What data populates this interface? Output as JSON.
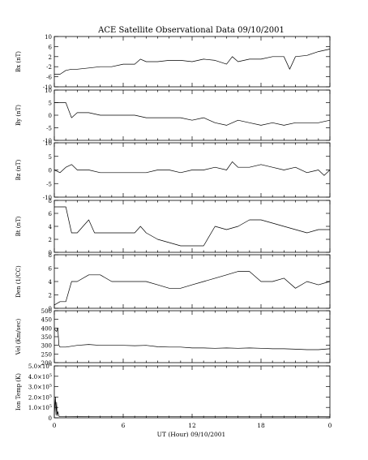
{
  "chart_data": {
    "type": "line",
    "title": "ACE Satellite Observational Data   09/10/2001",
    "xlabel": "UT (Hour)   09/10/2001",
    "x_tick_labels": [
      "0",
      "6",
      "12",
      "18",
      "0"
    ],
    "x_tick_hours": [
      0,
      6,
      12,
      18,
      24
    ],
    "xlim_hours": [
      0,
      24
    ],
    "grid": false,
    "legend": "none",
    "panels": [
      {
        "ylabel": "Bx (nT)",
        "ylim": [
          -10,
          10
        ],
        "y_ticks": [
          {
            "value": 10,
            "label": "10"
          },
          {
            "value": 6,
            "label": "6"
          },
          {
            "value": 2,
            "label": "2"
          },
          {
            "value": -2,
            "label": "-2"
          },
          {
            "value": -6,
            "label": "-6"
          },
          {
            "value": -10,
            "label": "-10"
          }
        ],
        "series": [
          {
            "x_hours": [
              0,
              0.5,
              1,
              1.5,
              2,
              3,
              4,
              5,
              6,
              7,
              7.5,
              8,
              9,
              10,
              11,
              12,
              13,
              14,
              15,
              15.5,
              16,
              17,
              18,
              19,
              20,
              20.5,
              21,
              22,
              23,
              24
            ],
            "values": [
              -5,
              -5,
              -3.5,
              -3,
              -3,
              -2.5,
              -2,
              -2,
              -1,
              -1,
              1,
              0,
              0,
              0.5,
              0.5,
              0,
              1,
              0.5,
              -1,
              2,
              0,
              1,
              1,
              2,
              2,
              -3,
              2,
              2.5,
              4,
              5
            ]
          }
        ]
      },
      {
        "ylabel": "By (nT)",
        "ylim": [
          -10,
          10
        ],
        "y_ticks": [
          {
            "value": 10,
            "label": "10"
          },
          {
            "value": 5,
            "label": "5"
          },
          {
            "value": 0,
            "label": "0"
          },
          {
            "value": -5,
            "label": "-5"
          },
          {
            "value": -10,
            "label": "-10"
          }
        ],
        "series": [
          {
            "x_hours": [
              0,
              1,
              1.5,
              2,
              3,
              4,
              5,
              6,
              7,
              8,
              9,
              10,
              11,
              12,
              13,
              14,
              15,
              16,
              17,
              18,
              19,
              20,
              21,
              22,
              23,
              24
            ],
            "values": [
              5,
              5,
              -1,
              1,
              1,
              0,
              0,
              0,
              0,
              -1,
              -1,
              -1,
              -1,
              -2,
              -1,
              -3,
              -4,
              -2,
              -3,
              -4,
              -3,
              -4,
              -3,
              -3,
              -3,
              -2
            ]
          }
        ]
      },
      {
        "ylabel": "Bz (nT)",
        "ylim": [
          -10,
          10
        ],
        "y_ticks": [
          {
            "value": 10,
            "label": "10"
          },
          {
            "value": 5,
            "label": "5"
          },
          {
            "value": 0,
            "label": "0"
          },
          {
            "value": -5,
            "label": "-5"
          },
          {
            "value": -10,
            "label": "-10"
          }
        ],
        "series": [
          {
            "x_hours": [
              0,
              0.5,
              1,
              1.5,
              2,
              3,
              4,
              5,
              6,
              7,
              8,
              9,
              10,
              11,
              12,
              13,
              14,
              15,
              15.5,
              16,
              17,
              18,
              19,
              20,
              21,
              22,
              23,
              23.5,
              24
            ],
            "values": [
              0,
              -1,
              1,
              2,
              0,
              0,
              -1,
              -1,
              -1,
              -1,
              -1,
              0,
              0,
              -1,
              0,
              0,
              1,
              0,
              3,
              1,
              1,
              2,
              1,
              0,
              1,
              -1,
              0,
              -2,
              0
            ]
          }
        ]
      },
      {
        "ylabel": "Bt (nT)",
        "ylim": [
          0,
          8
        ],
        "y_ticks": [
          {
            "value": 8,
            "label": "8"
          },
          {
            "value": 6,
            "label": "6"
          },
          {
            "value": 4,
            "label": "4"
          },
          {
            "value": 2,
            "label": "2"
          },
          {
            "value": 0,
            "label": "0"
          }
        ],
        "series": [
          {
            "x_hours": [
              0,
              1,
              1.5,
              2,
              3,
              3.5,
              4,
              5,
              6,
              7,
              7.5,
              8,
              9,
              10,
              11,
              12,
              13,
              14,
              15,
              16,
              17,
              18,
              19,
              20,
              21,
              22,
              23,
              24
            ],
            "values": [
              7,
              7,
              3,
              3,
              5,
              3,
              3,
              3,
              3,
              3,
              4,
              3,
              2,
              1.5,
              1,
              1,
              1,
              4,
              3.5,
              4,
              5,
              5,
              4.5,
              4,
              3.5,
              3,
              3.5,
              3.5
            ]
          }
        ]
      },
      {
        "ylabel": "Den (1/CC)",
        "ylim": [
          0,
          8
        ],
        "y_ticks": [
          {
            "value": 8,
            "label": "8"
          },
          {
            "value": 6,
            "label": "6"
          },
          {
            "value": 4,
            "label": "4"
          },
          {
            "value": 2,
            "label": "2"
          },
          {
            "value": 0,
            "label": "0"
          }
        ],
        "series": [
          {
            "x_hours": [
              0,
              0.5,
              1,
              1.5,
              2,
              3,
              4,
              5,
              6,
              7,
              8,
              9,
              10,
              11,
              12,
              13,
              14,
              15,
              16,
              17,
              18,
              19,
              20,
              21,
              22,
              23,
              24
            ],
            "values": [
              0.5,
              1,
              1,
              4,
              4,
              5,
              5,
              4,
              4,
              4,
              4,
              3.5,
              3,
              3,
              3.5,
              4,
              4.5,
              5,
              5.5,
              5.5,
              4,
              4,
              4.5,
              3,
              4,
              3.5,
              4
            ]
          }
        ]
      },
      {
        "ylabel": "Vel (Km/sec)",
        "ylim": [
          200,
          500
        ],
        "y_ticks": [
          {
            "value": 500,
            "label": "500"
          },
          {
            "value": 450,
            "label": "450"
          },
          {
            "value": 400,
            "label": "400"
          },
          {
            "value": 350,
            "label": "350"
          },
          {
            "value": 300,
            "label": "300"
          },
          {
            "value": 250,
            "label": "250"
          },
          {
            "value": 200,
            "label": "200"
          }
        ],
        "series": [
          {
            "x_hours": [
              0,
              0.2,
              0.3,
              0.4,
              0.5,
              1,
              2,
              3,
              4,
              5,
              6,
              7,
              8,
              9,
              10,
              11,
              12,
              13,
              14,
              15,
              16,
              17,
              18,
              19,
              20,
              21,
              22,
              23,
              24
            ],
            "values": [
              395,
              380,
              400,
              300,
              290,
              290,
              300,
              305,
              300,
              300,
              300,
              298,
              300,
              292,
              290,
              290,
              285,
              285,
              283,
              285,
              283,
              285,
              283,
              280,
              280,
              278,
              275,
              275,
              280
            ]
          }
        ]
      },
      {
        "ylabel": "Ion Temp (K)",
        "ylim": [
          0,
          500000
        ],
        "y_ticks": [
          {
            "value": 500000,
            "label": "5.0×10",
            "exp": "5"
          },
          {
            "value": 400000,
            "label": "4.0×10",
            "exp": "5"
          },
          {
            "value": 300000,
            "label": "3.0×10",
            "exp": "5"
          },
          {
            "value": 200000,
            "label": "2.0×10",
            "exp": "5"
          },
          {
            "value": 100000,
            "label": "1.0×10",
            "exp": "5"
          },
          {
            "value": 0,
            "label": "0",
            "exp": ""
          }
        ],
        "series": [
          {
            "x_hours": [
              0,
              0.1,
              0.15,
              0.2,
              0.25,
              0.3,
              0.4,
              0.5,
              1,
              2,
              4,
              6,
              8,
              10,
              12,
              14,
              16,
              18,
              20,
              22,
              24
            ],
            "values": [
              30000,
              200000,
              30000,
              150000,
              20000,
              60000,
              15000,
              10000,
              10000,
              12000,
              10000,
              10000,
              10000,
              10000,
              10000,
              10000,
              10000,
              10000,
              10000,
              10000,
              10000
            ]
          }
        ]
      }
    ]
  }
}
